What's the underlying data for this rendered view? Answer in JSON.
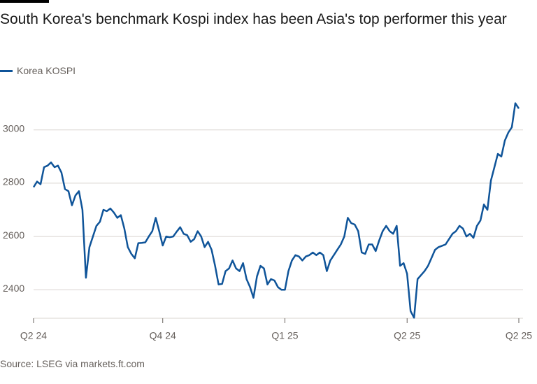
{
  "chart_data": {
    "type": "line",
    "title": "South Korea's benchmark Kospi index has been Asia's top performer this year",
    "source": "Source: LSEG via markets.ft.com",
    "categories": [
      "Q2 24",
      null,
      null,
      null,
      null,
      null,
      null,
      null,
      null,
      null,
      null,
      null,
      null,
      null,
      null,
      null,
      null,
      null,
      null,
      null,
      null,
      null,
      null,
      null,
      null,
      null,
      null,
      null,
      null,
      null,
      null,
      null,
      null,
      null,
      null,
      null,
      null,
      "Q4 24",
      null,
      null,
      null,
      null,
      null,
      null,
      null,
      null,
      null,
      null,
      null,
      null,
      null,
      null,
      null,
      null,
      null,
      null,
      null,
      null,
      null,
      null,
      null,
      null,
      null,
      null,
      null,
      null,
      null,
      null,
      null,
      null,
      null,
      null,
      "Q1 25",
      null,
      null,
      null,
      null,
      null,
      null,
      null,
      null,
      null,
      null,
      null,
      null,
      null,
      null,
      null,
      null,
      null,
      null,
      null,
      null,
      null,
      null,
      null,
      null,
      null,
      null,
      null,
      null,
      null,
      null,
      null,
      null,
      null,
      null,
      "Q2 25",
      null,
      null,
      null,
      null,
      null,
      null,
      null,
      null,
      null,
      null,
      null,
      null,
      null,
      null,
      null,
      null,
      null,
      null,
      null,
      null,
      null,
      null,
      null,
      null,
      null,
      null,
      null,
      null,
      null,
      null,
      null,
      "Q2 25"
    ],
    "series": [
      {
        "name": "Korea KOSPI",
        "color": "#0f5499",
        "values": [
          2785,
          2806,
          2796,
          2860,
          2866,
          2878,
          2860,
          2866,
          2840,
          2778,
          2770,
          2717,
          2754,
          2770,
          2700,
          2445,
          2560,
          2600,
          2640,
          2655,
          2700,
          2695,
          2705,
          2690,
          2670,
          2680,
          2630,
          2560,
          2535,
          2518,
          2575,
          2576,
          2578,
          2600,
          2620,
          2670,
          2620,
          2566,
          2600,
          2597,
          2600,
          2618,
          2635,
          2610,
          2605,
          2580,
          2590,
          2620,
          2600,
          2560,
          2580,
          2550,
          2490,
          2420,
          2422,
          2470,
          2480,
          2510,
          2480,
          2470,
          2500,
          2440,
          2410,
          2370,
          2450,
          2490,
          2480,
          2420,
          2440,
          2435,
          2410,
          2400,
          2400,
          2470,
          2510,
          2530,
          2525,
          2510,
          2525,
          2530,
          2540,
          2530,
          2540,
          2530,
          2470,
          2510,
          2530,
          2550,
          2570,
          2600,
          2670,
          2650,
          2645,
          2620,
          2540,
          2535,
          2570,
          2570,
          2545,
          2585,
          2620,
          2640,
          2620,
          2610,
          2640,
          2490,
          2500,
          2460,
          2320,
          2295,
          2440,
          2455,
          2470,
          2490,
          2520,
          2550,
          2560,
          2565,
          2570,
          2590,
          2610,
          2620,
          2640,
          2630,
          2600,
          2610,
          2595,
          2640,
          2660,
          2720,
          2700,
          2810,
          2860,
          2910,
          2900,
          2960,
          2990,
          3010,
          3100,
          3080
        ]
      }
    ],
    "ylim": [
      2280,
      3120
    ],
    "yticks": [
      2400,
      2600,
      2800,
      3000
    ],
    "grid": true
  }
}
